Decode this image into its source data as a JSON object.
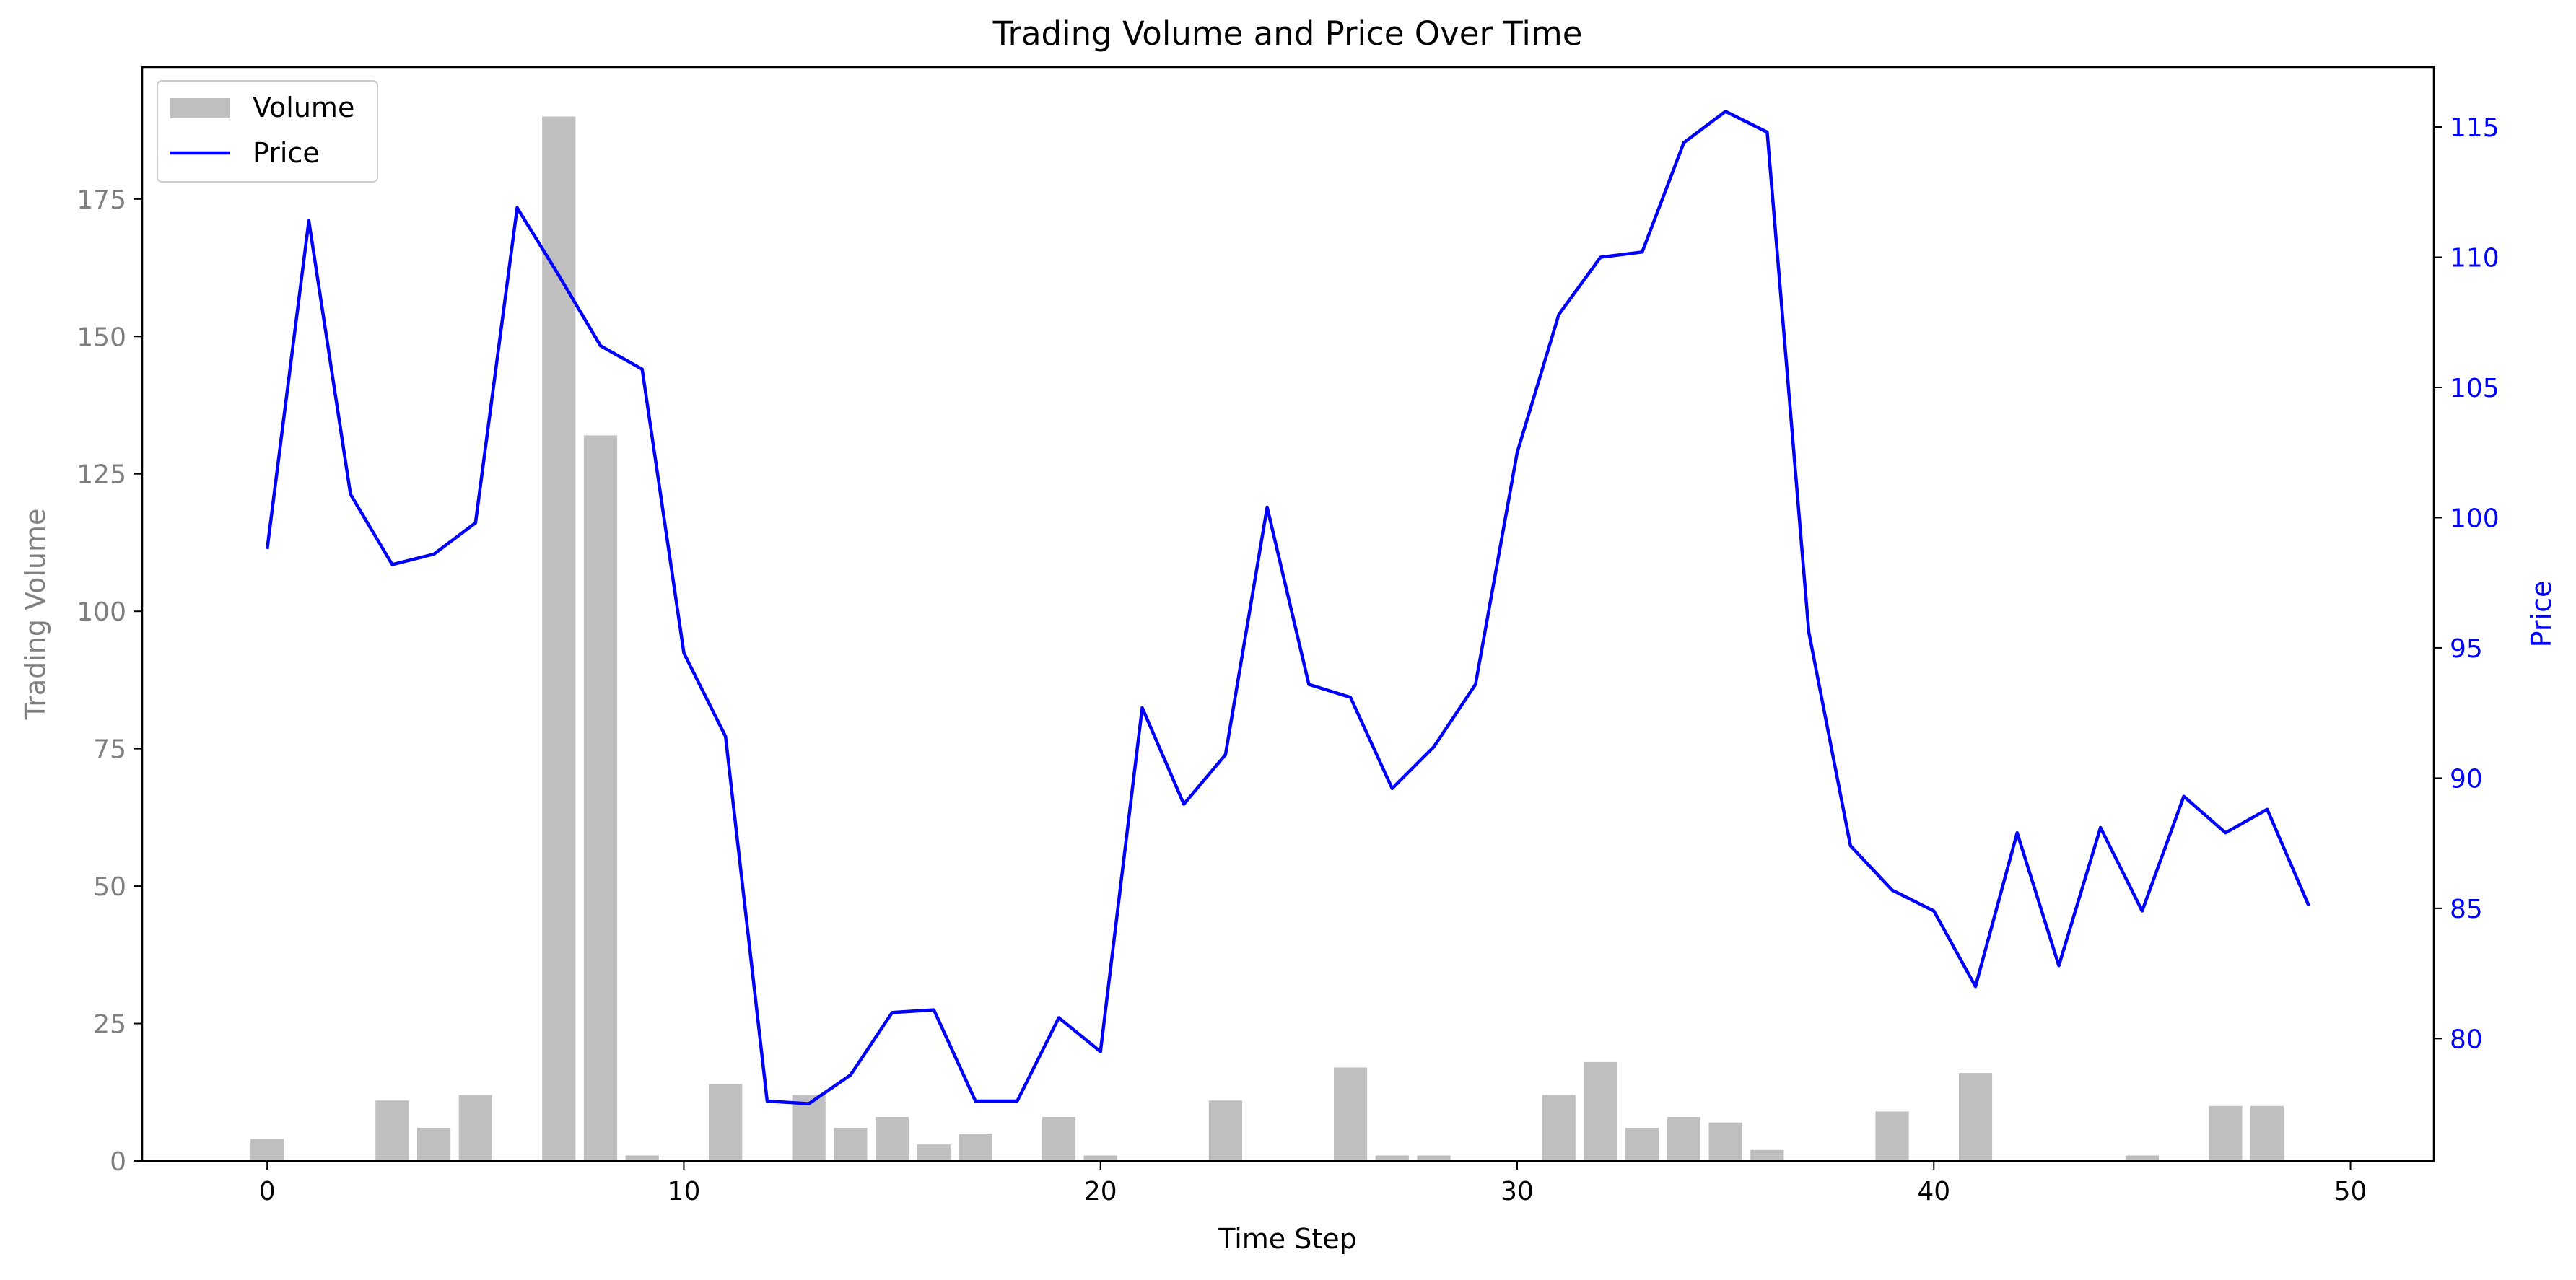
{
  "chart_data": {
    "type": "bar+line",
    "title": "Trading Volume and Price Over Time",
    "xlabel": "Time Step",
    "ylabel_left": "Trading Volume",
    "ylabel_right": "Price",
    "xlim": [
      -3,
      52
    ],
    "ylim_left": [
      0,
      199
    ],
    "ylim_right": [
      75.3,
      117.3
    ],
    "x_ticks": [
      0,
      10,
      20,
      30,
      40,
      50
    ],
    "y_left_ticks": [
      0,
      25,
      50,
      75,
      100,
      125,
      150,
      175
    ],
    "y_right_ticks": [
      80,
      85,
      90,
      95,
      100,
      105,
      110,
      115
    ],
    "legend_position": "top-left",
    "grid": false,
    "x": [
      0,
      1,
      2,
      3,
      4,
      5,
      6,
      7,
      8,
      9,
      10,
      11,
      12,
      13,
      14,
      15,
      16,
      17,
      18,
      19,
      20,
      21,
      22,
      23,
      24,
      25,
      26,
      27,
      28,
      29,
      30,
      31,
      32,
      33,
      34,
      35,
      36,
      37,
      38,
      39,
      40,
      41,
      42,
      43,
      44,
      45,
      46,
      47,
      48,
      49
    ],
    "series": [
      {
        "name": "Volume",
        "kind": "bar",
        "axis": "left",
        "color": "#bfbfbf",
        "values": [
          4,
          0,
          0,
          11,
          6,
          12,
          0,
          190,
          132,
          1,
          0,
          14,
          0,
          12,
          6,
          8,
          3,
          5,
          0,
          8,
          1,
          0,
          0,
          11,
          0,
          0,
          17,
          1,
          1,
          0,
          0,
          12,
          18,
          6,
          8,
          7,
          2,
          0,
          0,
          9,
          0,
          16,
          0,
          0,
          0,
          1,
          0,
          10,
          10,
          0
        ]
      },
      {
        "name": "Price",
        "kind": "line",
        "axis": "right",
        "color": "#0000ff",
        "values": [
          98.8,
          111.4,
          100.9,
          98.2,
          98.6,
          99.8,
          111.9,
          109.3,
          106.6,
          105.7,
          94.8,
          91.6,
          77.6,
          77.5,
          78.6,
          81.0,
          81.1,
          77.6,
          77.6,
          80.8,
          79.5,
          92.7,
          89.0,
          90.9,
          100.4,
          93.6,
          93.1,
          89.6,
          91.2,
          93.6,
          102.5,
          107.8,
          110.0,
          110.2,
          114.4,
          115.6,
          114.8,
          95.6,
          87.4,
          85.7,
          84.9,
          82.0,
          87.9,
          82.8,
          88.1,
          84.9,
          89.3,
          87.9,
          88.8,
          85.1
        ]
      }
    ],
    "colors": {
      "volume": "#bfbfbf",
      "price": "#0000ff",
      "left_axis_text": "#808080",
      "right_axis_text": "#0000ff",
      "axis_line": "#000000"
    }
  }
}
